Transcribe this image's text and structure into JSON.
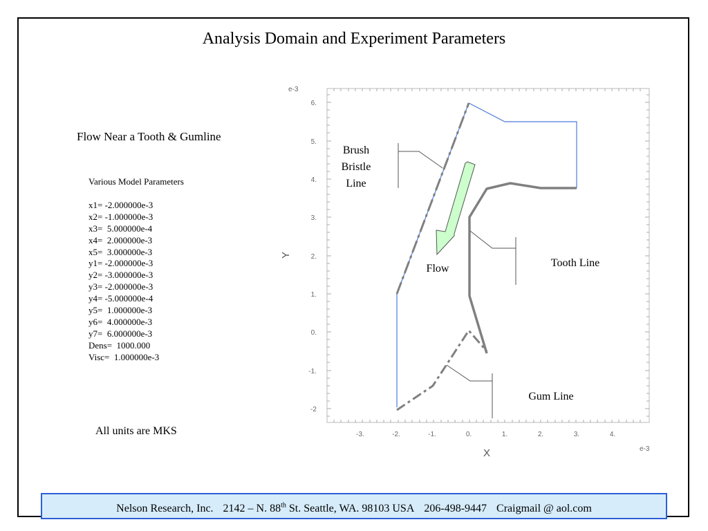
{
  "slide": {
    "title": "Analysis Domain and Experiment Parameters",
    "subtitle": "Flow Near a Tooth & Gumline",
    "units_note": "All units are MKS"
  },
  "parameters": {
    "heading": "Various Model Parameters",
    "items": [
      "x1= -2.000000e-3",
      "x2= -1.000000e-3",
      "x3=  5.000000e-4",
      "x4=  2.000000e-3",
      "x5=  3.000000e-3",
      "y1= -2.000000e-3",
      "y2= -3.000000e-3",
      "y3= -2.000000e-3",
      "y4= -5.000000e-4",
      "y5=  1.000000e-3",
      "y6=  4.000000e-3",
      "y7=  6.000000e-3",
      "Dens=  1000.000",
      "Visc=  1.000000e-3"
    ]
  },
  "diagram": {
    "x_axis_label": "X",
    "y_axis_label": "Y",
    "x_exponent": "e-3",
    "y_exponent": "e-3",
    "x_ticks": [
      "-3.",
      "-2.",
      "-1.",
      "0.",
      "1.",
      "2.",
      "3.",
      "4."
    ],
    "y_ticks": [
      "6.",
      "5.",
      "4.",
      "3.",
      "2.",
      "1.",
      "0.",
      "-1.",
      "-2"
    ],
    "annotations": {
      "brush_bristle_line": "Brush Bristle Line",
      "flow": "Flow",
      "tooth_line": "Tooth Line",
      "gum_line": "Gum Line"
    },
    "colors": {
      "boundary": "#4a7bdc",
      "feature": "#808080",
      "flow_arrow_fill": "#ccffcc"
    }
  },
  "footer": {
    "company": "Nelson Research, Inc.",
    "address_number": "2142 –  N. 88",
    "address_sup": "th",
    "address_rest": " St. Seattle, WA. 98103   USA",
    "phone": "206-498-9447",
    "email": "Craigmail @ aol.com"
  }
}
